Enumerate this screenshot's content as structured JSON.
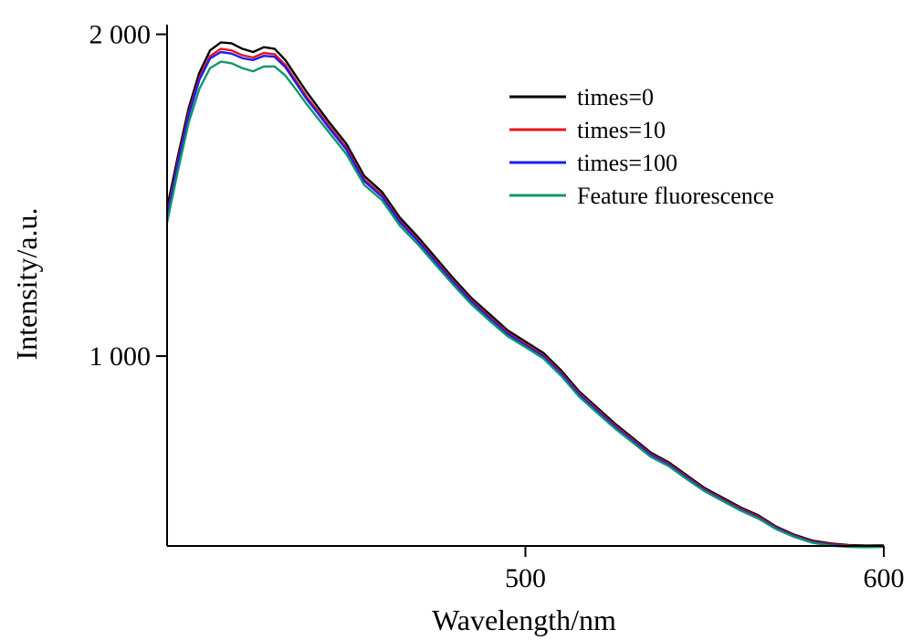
{
  "chart_data": {
    "type": "line",
    "xlabel": "Wavelength/nm",
    "ylabel": "Intensity/a.u.",
    "xlim": [
      400,
      600
    ],
    "ylim": [
      410,
      2030
    ],
    "x_ticks": [
      {
        "value": 500,
        "label": "500"
      },
      {
        "value": 600,
        "label": "600"
      }
    ],
    "y_ticks": [
      {
        "value": 1000,
        "label": "1 000"
      },
      {
        "value": 2000,
        "label": "2 000"
      }
    ],
    "grid": false,
    "legend_position": "top-right",
    "x": [
      400,
      403,
      406,
      409,
      412,
      415,
      418,
      421,
      424,
      427,
      430,
      433,
      436,
      439,
      442,
      445,
      450,
      455,
      460,
      465,
      470,
      475,
      480,
      485,
      490,
      495,
      500,
      505,
      510,
      515,
      520,
      525,
      530,
      535,
      540,
      545,
      550,
      555,
      560,
      565,
      570,
      575,
      580,
      585,
      590,
      595,
      600
    ],
    "series": [
      {
        "name": "times=0",
        "color": "#000000",
        "values": [
          1460,
          1620,
          1770,
          1880,
          1950,
          1975,
          1972,
          1955,
          1945,
          1960,
          1955,
          1920,
          1870,
          1820,
          1775,
          1730,
          1660,
          1560,
          1510,
          1430,
          1370,
          1305,
          1240,
          1180,
          1130,
          1080,
          1045,
          1010,
          955,
          890,
          840,
          790,
          745,
          700,
          670,
          630,
          590,
          560,
          530,
          505,
          470,
          445,
          427,
          418,
          413,
          411,
          412
        ]
      },
      {
        "name": "times=10",
        "color": "#e8141c",
        "values": [
          1440,
          1605,
          1755,
          1865,
          1932,
          1955,
          1950,
          1935,
          1928,
          1942,
          1938,
          1905,
          1855,
          1805,
          1762,
          1718,
          1648,
          1549,
          1500,
          1420,
          1361,
          1296,
          1232,
          1172,
          1122,
          1073,
          1038,
          1003,
          948,
          884,
          834,
          784,
          740,
          695,
          665,
          625,
          586,
          556,
          526,
          501,
          467,
          442,
          424,
          415,
          411,
          409,
          410
        ]
      },
      {
        "name": "times=100",
        "color": "#1c1cf0",
        "values": [
          1432,
          1598,
          1748,
          1858,
          1925,
          1945,
          1940,
          1926,
          1920,
          1933,
          1930,
          1898,
          1848,
          1798,
          1756,
          1712,
          1642,
          1544,
          1495,
          1416,
          1357,
          1292,
          1228,
          1168,
          1118,
          1069,
          1034,
          999,
          944,
          880,
          830,
          780,
          736,
          692,
          662,
          622,
          583,
          553,
          523,
          498,
          465,
          440,
          422,
          413,
          409,
          408,
          409
        ]
      },
      {
        "name": "Feature fluorescence",
        "color": "#12956a",
        "values": [
          1415,
          1575,
          1725,
          1830,
          1895,
          1915,
          1910,
          1895,
          1885,
          1900,
          1900,
          1872,
          1828,
          1782,
          1740,
          1698,
          1628,
          1532,
          1484,
          1405,
          1347,
          1283,
          1220,
          1160,
          1110,
          1062,
          1028,
          993,
          938,
          874,
          824,
          775,
          731,
          687,
          658,
          618,
          580,
          550,
          520,
          495,
          462,
          438,
          420,
          411,
          407,
          406,
          407
        ]
      }
    ]
  }
}
